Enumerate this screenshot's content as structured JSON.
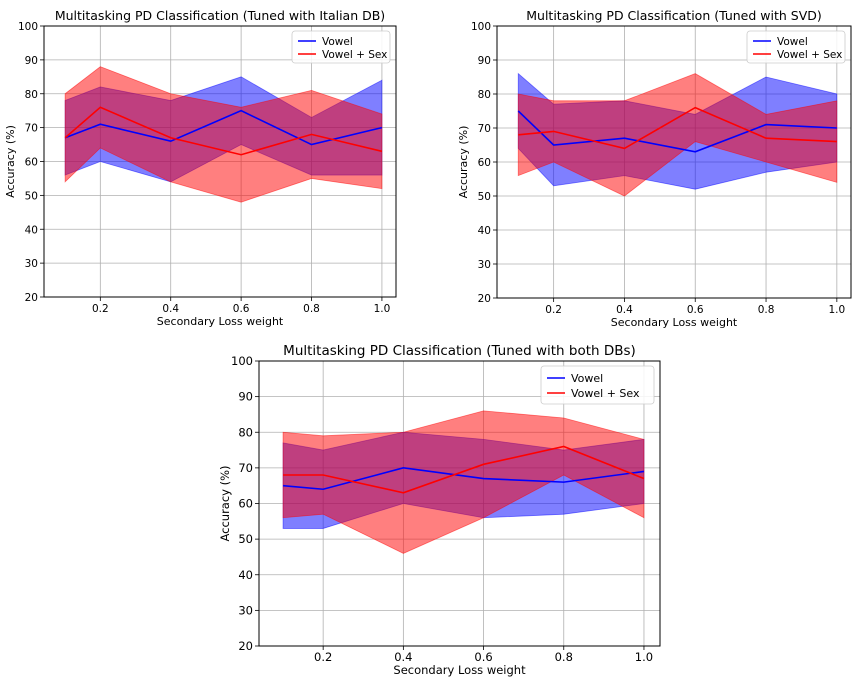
{
  "chart_data": [
    {
      "type": "line",
      "title": "Multitasking PD Classification (Tuned with Italian DB)",
      "xlabel": "Secondary Loss weight",
      "ylabel": "Accuracy (%)",
      "xlim": [
        0.04,
        1.04
      ],
      "ylim": [
        20,
        100
      ],
      "x": [
        0.1,
        0.2,
        0.4,
        0.6,
        0.8,
        1.0
      ],
      "xticks": [
        "0.2",
        "0.4",
        "0.6",
        "0.8",
        "1.0"
      ],
      "yticks": [
        "20",
        "30",
        "40",
        "50",
        "60",
        "70",
        "80",
        "90",
        "100"
      ],
      "grid": true,
      "legend_position": "top-right",
      "series": [
        {
          "name": "Vowel",
          "color": "#0000ff",
          "values": [
            67,
            71,
            66,
            75,
            65,
            70
          ],
          "upper": [
            78,
            82,
            78,
            85,
            73,
            84
          ],
          "lower": [
            56,
            60,
            54,
            65,
            56,
            56
          ]
        },
        {
          "name": "Vowel + Sex",
          "color": "#ff0000",
          "values": [
            67,
            76,
            67,
            62,
            68,
            63
          ],
          "upper": [
            80,
            88,
            80,
            76,
            81,
            74
          ],
          "lower": [
            54,
            64,
            54,
            48,
            55,
            52
          ]
        }
      ]
    },
    {
      "type": "line",
      "title": "Multitasking PD Classification (Tuned with SVD)",
      "xlabel": "Secondary Loss weight",
      "ylabel": "Accuracy (%)",
      "xlim": [
        0.04,
        1.04
      ],
      "ylim": [
        20,
        100
      ],
      "x": [
        0.1,
        0.2,
        0.4,
        0.6,
        0.8,
        1.0
      ],
      "xticks": [
        "0.2",
        "0.4",
        "0.6",
        "0.8",
        "1.0"
      ],
      "yticks": [
        "20",
        "30",
        "40",
        "50",
        "60",
        "70",
        "80",
        "90",
        "100"
      ],
      "grid": true,
      "legend_position": "top-right",
      "series": [
        {
          "name": "Vowel",
          "color": "#0000ff",
          "values": [
            75,
            65,
            67,
            63,
            71,
            70
          ],
          "upper": [
            86,
            77,
            78,
            74,
            85,
            80
          ],
          "lower": [
            64,
            53,
            56,
            52,
            57,
            60
          ]
        },
        {
          "name": "Vowel + Sex",
          "color": "#ff0000",
          "values": [
            68,
            69,
            64,
            76,
            67,
            66
          ],
          "upper": [
            80,
            78,
            78,
            86,
            74,
            78
          ],
          "lower": [
            56,
            60,
            50,
            66,
            60,
            54
          ]
        }
      ]
    },
    {
      "type": "line",
      "title": "Multitasking PD Classification (Tuned with both DBs)",
      "xlabel": "Secondary Loss weight",
      "ylabel": "Accuracy (%)",
      "xlim": [
        0.04,
        1.04
      ],
      "ylim": [
        20,
        100
      ],
      "x": [
        0.1,
        0.2,
        0.4,
        0.6,
        0.8,
        1.0
      ],
      "xticks": [
        "0.2",
        "0.4",
        "0.6",
        "0.8",
        "1.0"
      ],
      "yticks": [
        "20",
        "30",
        "40",
        "50",
        "60",
        "70",
        "80",
        "90",
        "100"
      ],
      "grid": true,
      "legend_position": "top-right",
      "series": [
        {
          "name": "Vowel",
          "color": "#0000ff",
          "values": [
            65,
            64,
            70,
            67,
            66,
            69
          ],
          "upper": [
            77,
            75,
            80,
            78,
            75,
            78
          ],
          "lower": [
            53,
            53,
            60,
            56,
            57,
            60
          ]
        },
        {
          "name": "Vowel + Sex",
          "color": "#ff0000",
          "values": [
            68,
            68,
            63,
            71,
            76,
            67
          ],
          "upper": [
            80,
            79,
            80,
            86,
            84,
            78
          ],
          "lower": [
            56,
            57,
            46,
            56,
            68,
            56
          ]
        }
      ]
    }
  ]
}
